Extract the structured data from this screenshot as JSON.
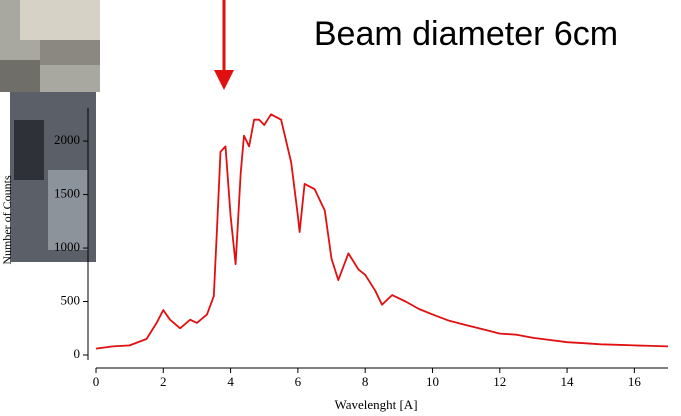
{
  "chart_data": {
    "type": "line",
    "annotation": "Beam diameter 6cm",
    "x_label": "Wavelenght [A]",
    "y_label": "Number of Counts",
    "color": "#e01010",
    "x": [
      0,
      0.5,
      1,
      1.5,
      1.8,
      2.0,
      2.2,
      2.5,
      2.8,
      3.0,
      3.3,
      3.5,
      3.6,
      3.7,
      3.85,
      4.0,
      4.15,
      4.3,
      4.4,
      4.55,
      4.7,
      4.85,
      5.0,
      5.2,
      5.5,
      5.8,
      6.0,
      6.05,
      6.2,
      6.5,
      6.8,
      7.0,
      7.2,
      7.5,
      7.8,
      8.0,
      8.3,
      8.5,
      8.8,
      9.2,
      9.6,
      10,
      10.5,
      11,
      11.5,
      12,
      12.5,
      13,
      13.5,
      14,
      14.5,
      15,
      15.5,
      16,
      16.5,
      17
    ],
    "values": [
      60,
      80,
      90,
      150,
      300,
      420,
      330,
      250,
      330,
      300,
      380,
      550,
      1200,
      1900,
      1950,
      1300,
      850,
      1700,
      2050,
      1950,
      2200,
      2200,
      2150,
      2250,
      2200,
      1800,
      1300,
      1150,
      1600,
      1550,
      1350,
      900,
      700,
      950,
      800,
      750,
      600,
      470,
      560,
      500,
      430,
      380,
      320,
      280,
      240,
      200,
      190,
      160,
      140,
      120,
      110,
      100,
      95,
      90,
      85,
      80
    ],
    "xlim": [
      0,
      17
    ],
    "xticks": [
      0,
      2,
      4,
      6,
      8,
      10,
      12,
      14,
      16
    ],
    "ylim": [
      0,
      2300
    ],
    "yticks": [
      0,
      500,
      1000,
      1500,
      2000
    ]
  }
}
